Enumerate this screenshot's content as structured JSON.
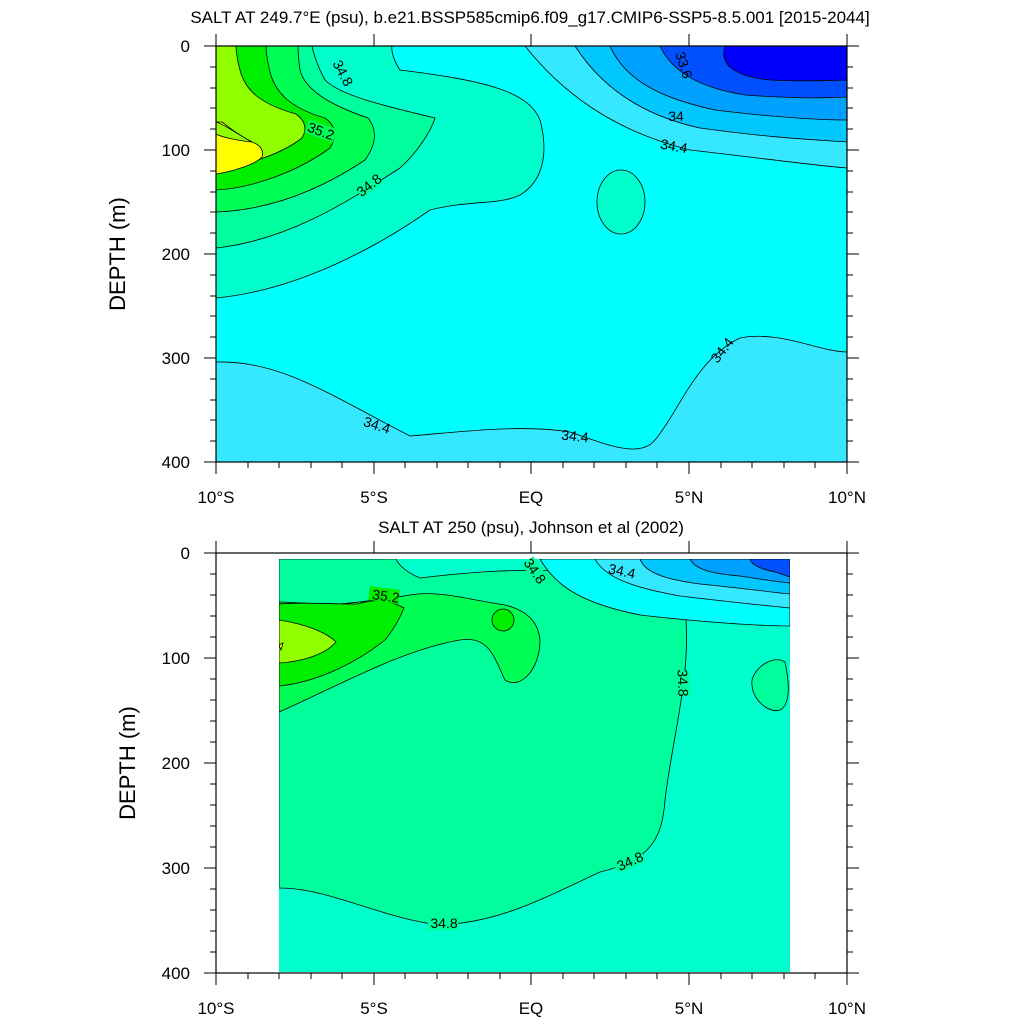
{
  "figure": {
    "top_title": "SALT AT 249.7°E (psu), b.e21.BSSP585cmip6.f09_g17.CMIP6-SSP5-8.5.001 [2015-2044]",
    "bottom_title": "SALT AT 250 (psu), Johnson et al (2002)"
  },
  "chart_data": [
    {
      "type": "contour",
      "title": "SALT AT 249.7°E (psu), b.e21.BSSP585cmip6.f09_g17.CMIP6-SSP5-8.5.001 [2015-2044]",
      "xlabel": "",
      "ylabel": "DEPTH (m)",
      "xlim": [
        -10,
        10
      ],
      "ylim": [
        0,
        400
      ],
      "y_reversed": true,
      "x_tick_labels": [
        "10°S",
        "5°S",
        "EQ",
        "5°N",
        "10°N"
      ],
      "y_tick_labels": [
        "0",
        "100",
        "200",
        "300",
        "400"
      ],
      "contour_labels": [
        "34.8",
        "35.2",
        "34.8",
        "33.6",
        "34",
        "34.4",
        "34.4",
        "34.4",
        "34.4"
      ],
      "fill_colors": [
        "#0000ff",
        "#0050ff",
        "#00a0ff",
        "#00c8ff",
        "#36e8ff",
        "#00ffff",
        "#00ffcc",
        "#00ff9c",
        "#00ff55",
        "#00ee00",
        "#90ff00",
        "#ffff00"
      ],
      "grid": false
    },
    {
      "type": "contour",
      "title": "SALT AT 250 (psu), Johnson et al (2002)",
      "xlabel": "",
      "ylabel": "DEPTH (m)",
      "xlim": [
        -10,
        10
      ],
      "ylim": [
        0,
        400
      ],
      "y_reversed": true,
      "data_x_range": [
        -8,
        8.2
      ],
      "x_tick_labels": [
        "10°S",
        "5°S",
        "EQ",
        "5°N",
        "10°N"
      ],
      "y_tick_labels": [
        "0",
        "100",
        "200",
        "300",
        "400"
      ],
      "contour_labels": [
        "35.2",
        "34.8",
        "34.4",
        "34.8",
        "34.8",
        "34.8"
      ],
      "fill_colors": [
        "#0000ff",
        "#0050ff",
        "#00a0ff",
        "#00c8ff",
        "#36e8ff",
        "#00ffff",
        "#00ffcc",
        "#00ff9c",
        "#00ff55",
        "#00ee00",
        "#90ff00",
        "#ffff00"
      ],
      "grid": false
    }
  ]
}
